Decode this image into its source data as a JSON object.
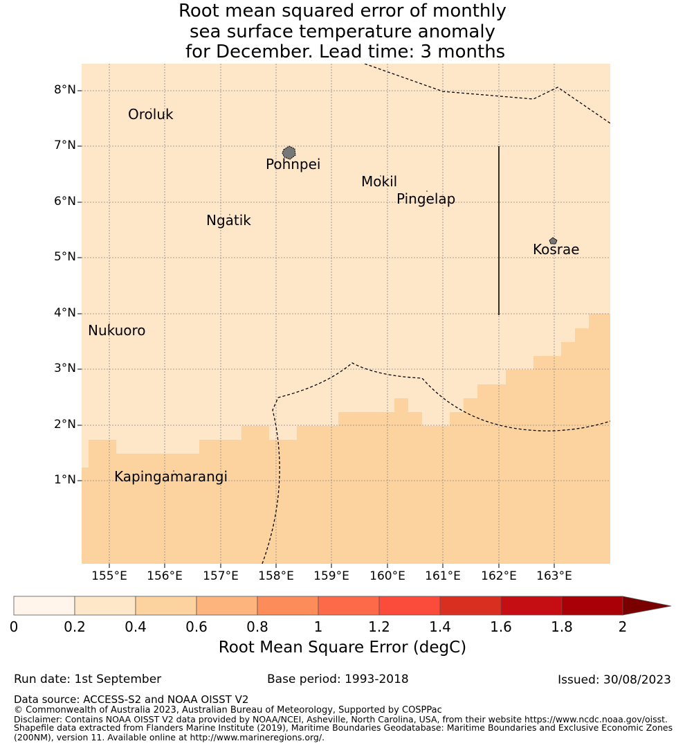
{
  "title": {
    "line1": "Root mean squared error of monthly",
    "line2": "sea surface temperature anomaly",
    "line3": " for December. Lead time: 3 months"
  },
  "map": {
    "latitude_labels": [
      "8°N",
      "7°N",
      "6°N",
      "5°N",
      "4°N",
      "3°N",
      "2°N",
      "1°N"
    ],
    "longitude_labels": [
      "155°E",
      "156°E",
      "157°E",
      "158°E",
      "159°E",
      "160°E",
      "161°E",
      "162°E",
      "163°E"
    ],
    "places": [
      "Oroluk",
      "Pohnpei",
      "Mokil",
      "Pingelap",
      "Ngatik",
      "Kosrae",
      "Nukuoro",
      "Kapingamarangi"
    ],
    "colors": {
      "class_0_2_to_0_4": "#fee6c9",
      "class_0_4_to_0_6": "#fcd39e",
      "land": "#888888",
      "grid": "#888888"
    }
  },
  "colorbar": {
    "ticks": [
      "0",
      "0.2",
      "0.4",
      "0.6",
      "0.8",
      "1",
      "1.2",
      "1.4",
      "1.6",
      "1.8",
      "2"
    ],
    "colors": [
      "#fff5eb",
      "#fee6c9",
      "#fcd39e",
      "#fdb57d",
      "#fc8c59",
      "#fc6a4a",
      "#fb4b3b",
      "#d92f21",
      "#c50d14",
      "#a80006"
    ],
    "extend_color": "#7a0000",
    "label": "Root Mean Square Error (degC)"
  },
  "footer": {
    "run_date": "Run date: 1st September",
    "base_period": "Base period: 1993-2018",
    "issued": "Issued: 30/08/2023",
    "data_source": "Data source: ACCESS-S2 and NOAA OISST V2",
    "copyright": "© Commonwealth of Australia 2023, Australian Bureau of Meteorology, Supported by COSPPac",
    "disclaimer_1": "Disclaimer: Contains NOAA OISST V2 data provided by NOAA/NCEI, Asheville, North Carolina, USA, from their website https://www.ncdc.noaa.gov/oisst.",
    "disclaimer_2": "Shapefile data extracted from Flanders Marine Institute (2019), Maritime Boundaries Geodatabase: Maritime Boundaries and Exclusive Economic Zones",
    "disclaimer_3": "(200NM), version 11. Available online at http://www.marineregions.org/."
  }
}
